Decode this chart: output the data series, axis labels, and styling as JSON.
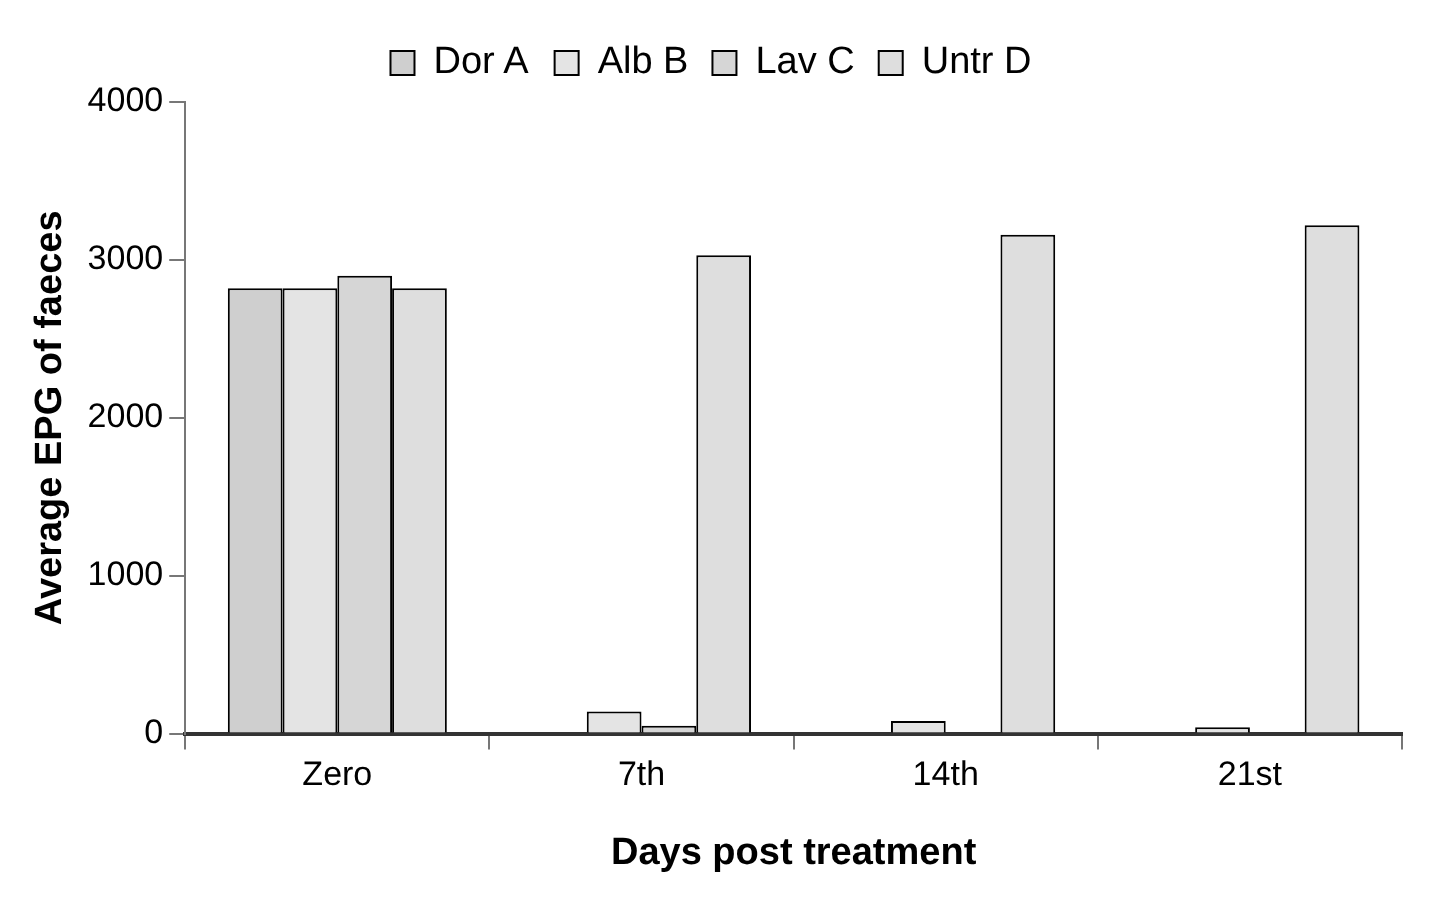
{
  "chart_data": {
    "type": "bar",
    "xlabel": "Days post treatment",
    "ylabel": "Average EPG of faeces",
    "categories": [
      "Zero",
      "7th",
      "14th",
      "21st"
    ],
    "series": [
      {
        "name": "Dor A",
        "color": "#cfcfcf",
        "values": [
          2820,
          0,
          0,
          0
        ]
      },
      {
        "name": "Alb B",
        "color": "#e4e4e4",
        "values": [
          2820,
          140,
          80,
          40
        ]
      },
      {
        "name": "Lav C",
        "color": "#d6d6d6",
        "values": [
          2900,
          50,
          0,
          0
        ]
      },
      {
        "name": "Untr D",
        "color": "#dedede",
        "values": [
          2820,
          3030,
          3160,
          3220
        ]
      }
    ],
    "ylim": [
      0,
      4000
    ],
    "yticks": [
      0,
      1000,
      2000,
      3000,
      4000
    ],
    "grid": false,
    "legend": "top"
  }
}
